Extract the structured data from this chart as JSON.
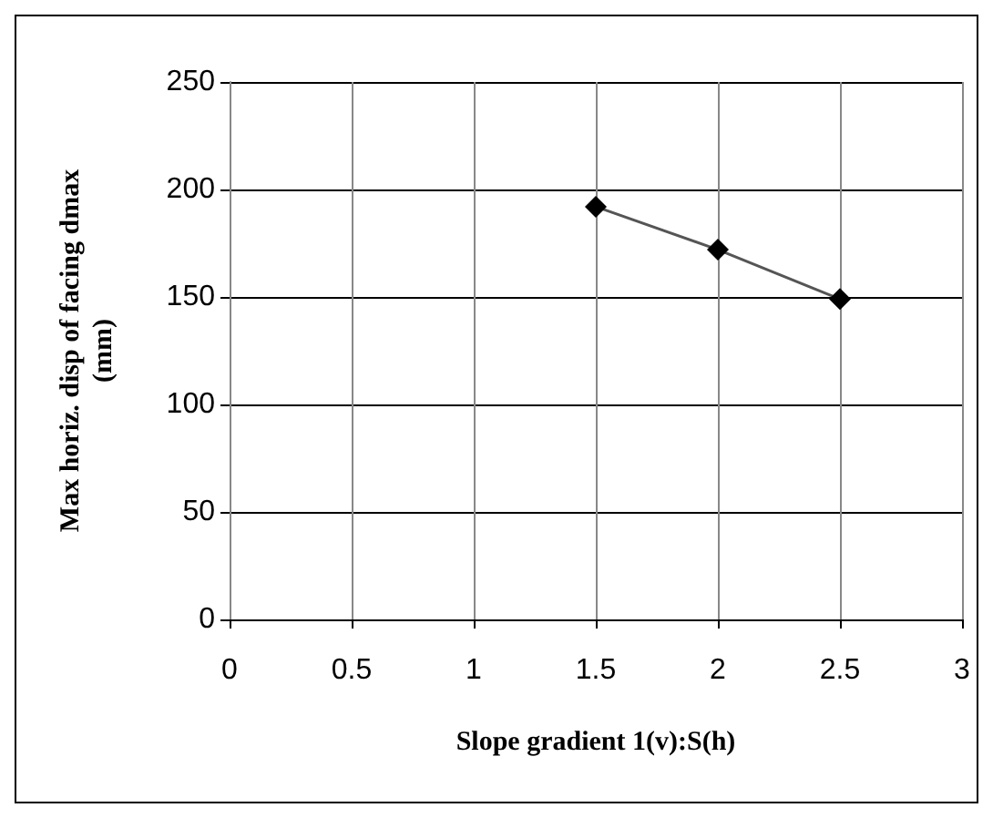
{
  "chart_data": {
    "type": "line",
    "xlabel": "Slope gradient 1(v):S(h)",
    "ylabel": "Max horiz. disp of facing dmax\n(mm)",
    "x": [
      1.5,
      2,
      2.5
    ],
    "series": [
      {
        "color": "#000000",
        "values": [
          192,
          172,
          149
        ]
      }
    ],
    "xlim": [
      0,
      3
    ],
    "xticks": [
      0,
      0.5,
      1,
      1.5,
      2,
      2.5,
      3
    ],
    "ylim": [
      0,
      250
    ],
    "yticks": [
      0,
      50,
      100,
      150,
      200,
      250
    ],
    "grid": true,
    "marker": "diamond",
    "line_style": "solid"
  }
}
